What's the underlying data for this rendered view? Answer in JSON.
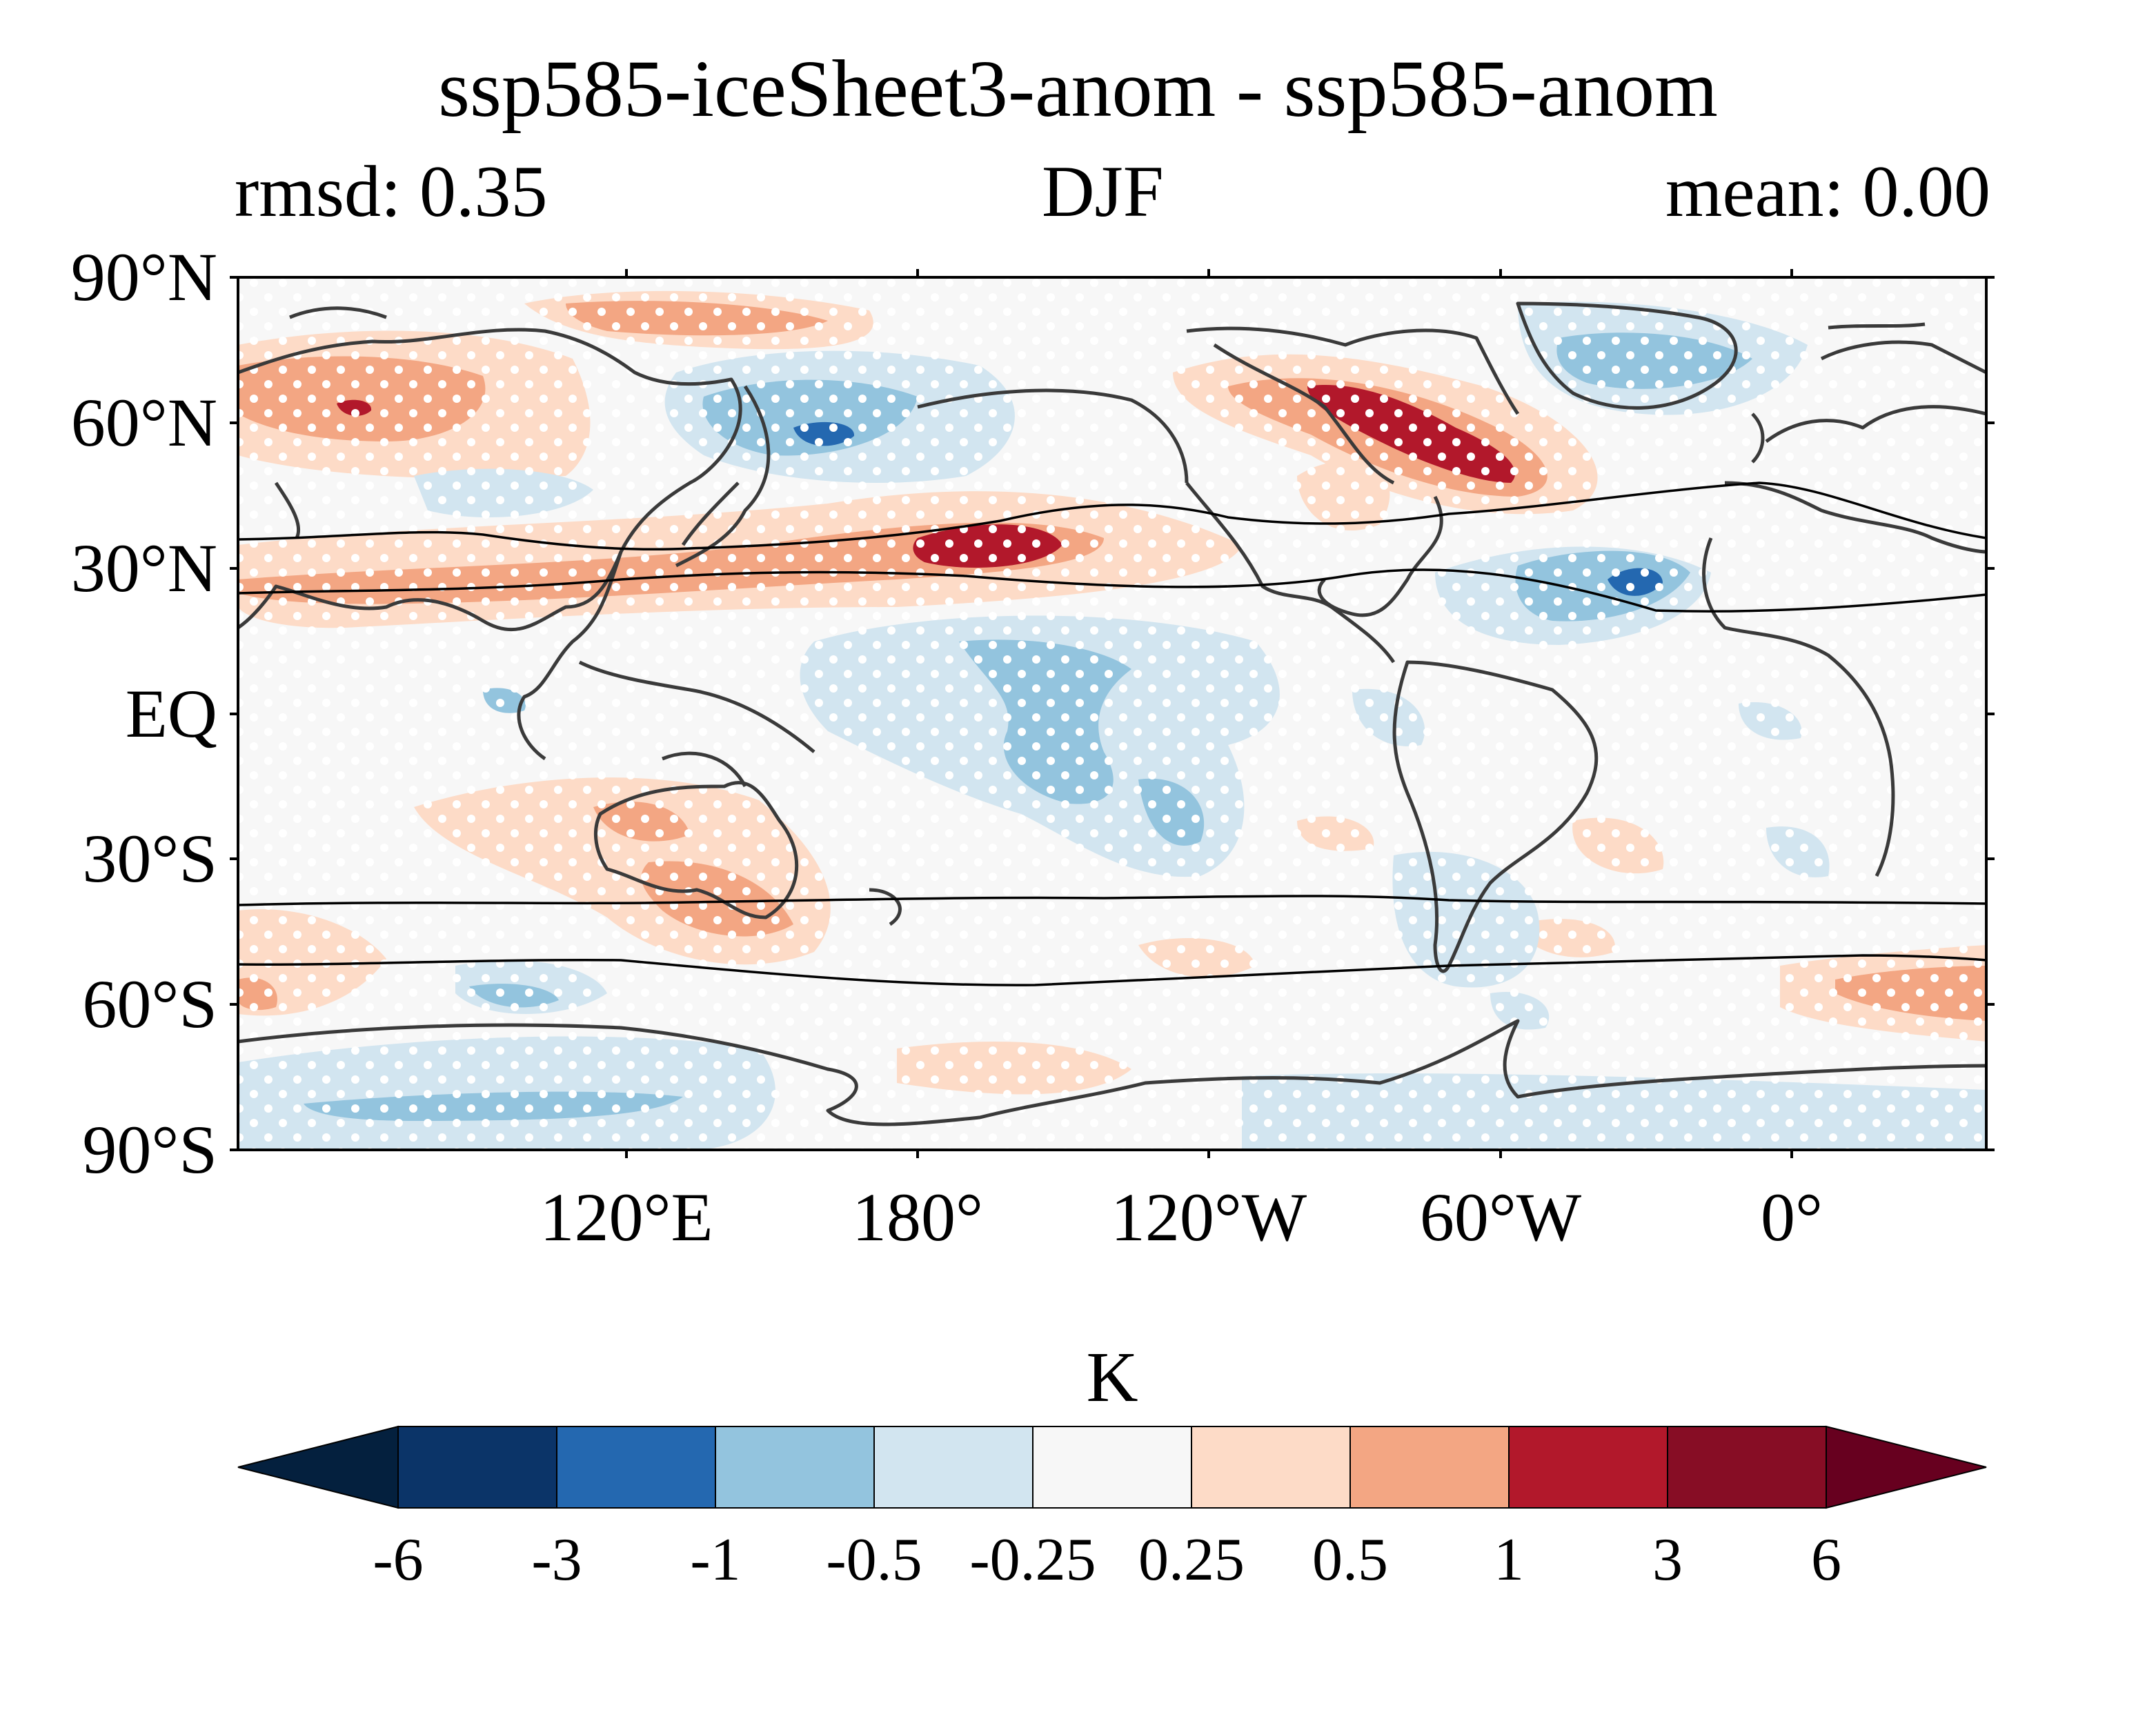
{
  "header": {
    "title": "ssp585-iceSheet3-anom - ssp585-anom",
    "left_stat": "rmsd: 0.35",
    "season": "DJF",
    "right_stat": "mean: 0.00"
  },
  "map": {
    "projection": "PlateCarree, central longitude 150°",
    "lat_ticks": [
      "90°N",
      "60°N",
      "30°N",
      "EQ",
      "30°S",
      "60°S",
      "90°S"
    ],
    "lon_ticks": [
      "120°E",
      "180°",
      "120°W",
      "60°W",
      "0°"
    ],
    "stippling": "white dots over most of the domain",
    "colors": {
      "land_outline": "#3a3a3a",
      "contour_line": "#000000"
    }
  },
  "colorbar": {
    "unit": "K",
    "boundaries": [
      "-6",
      "-3",
      "-1",
      "-0.5",
      "-0.25",
      "0.25",
      "0.5",
      "1",
      "3",
      "6"
    ],
    "colors": [
      "#053061",
      "#2166ac",
      "#92c5de",
      "#d1e5f0",
      "#f7f7f7",
      "#fddbc7",
      "#f4a582",
      "#b2182b",
      "#67001f"
    ],
    "extend_low_color": "#04203e",
    "extend_high_color": "#67001f",
    "segment_colors": [
      "#0b3468",
      "#2468b0",
      "#93c4de",
      "#d2e5f0",
      "#f7f7f7",
      "#fddbc7",
      "#f3a683",
      "#b2182b",
      "#870d25"
    ]
  }
}
